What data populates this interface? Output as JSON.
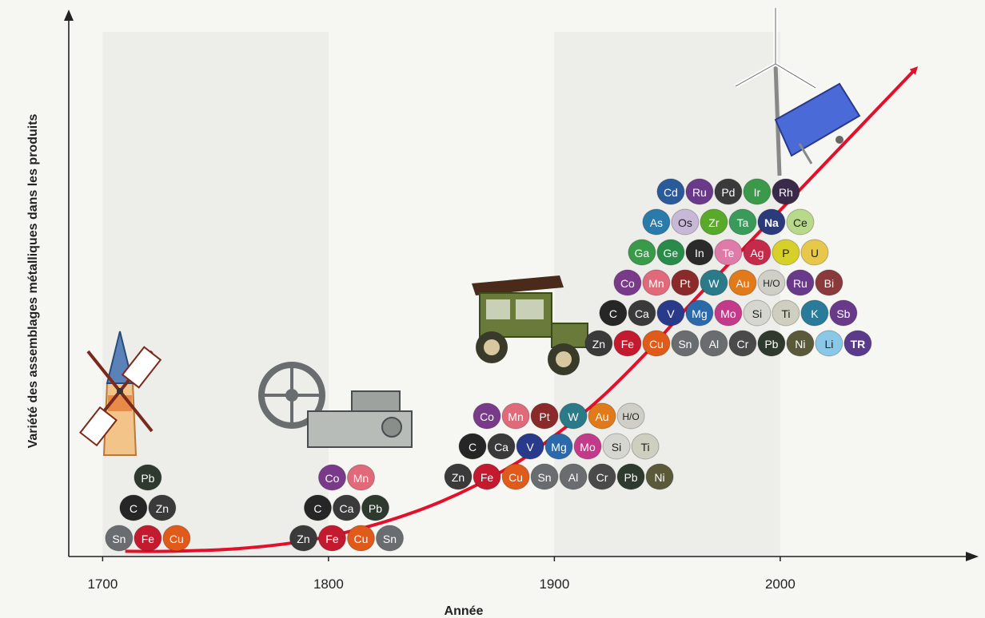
{
  "chart_data": {
    "type": "line",
    "title": "",
    "xlabel": "Année",
    "ylabel": "Variété des assemblages métalliques dans les produits",
    "x_ticks": [
      "1700",
      "1800",
      "1900",
      "2000"
    ],
    "xlim": [
      1685,
      2085
    ],
    "ylim": [
      0,
      10
    ],
    "grid": false,
    "trend_curve": {
      "x": [
        1710,
        1730,
        1760,
        1790,
        1820,
        1850,
        1880,
        1900,
        1920,
        1940,
        1960,
        1980,
        2000,
        2020,
        2040,
        2060
      ],
      "y": [
        0.1,
        0.1,
        0.15,
        0.3,
        0.6,
        1.05,
        1.7,
        2.3,
        3.0,
        3.85,
        4.8,
        5.7,
        6.6,
        7.5,
        8.4,
        9.3
      ],
      "color": "#e3102b"
    },
    "groups": [
      {
        "year": 1710,
        "icon": "windmill-icon",
        "rows": [
          [
            {
              "s": "Pb",
              "c": "#2e3a2e"
            }
          ],
          [
            {
              "s": "C",
              "c": "#262626"
            },
            {
              "s": "Zn",
              "c": "#3a3a3a"
            }
          ],
          [
            {
              "s": "Sn",
              "c": "#6a6d70"
            },
            {
              "s": "Fe",
              "c": "#c41a30"
            },
            {
              "s": "Cu",
              "c": "#e05a1a"
            }
          ]
        ]
      },
      {
        "year": 1800,
        "icon": "steam-engine-icon",
        "rows": [
          [
            {
              "s": "Co",
              "c": "#7a3a8a"
            },
            {
              "s": "Mn",
              "c": "#e06a7a"
            }
          ],
          [
            {
              "s": "C",
              "c": "#262626"
            },
            {
              "s": "Ca",
              "c": "#3a3a3a"
            },
            {
              "s": "Pb",
              "c": "#2e3a2e"
            }
          ],
          [
            {
              "s": "Zn",
              "c": "#3a3a3a"
            },
            {
              "s": "Fe",
              "c": "#c41a30"
            },
            {
              "s": "Cu",
              "c": "#e05a1a"
            },
            {
              "s": "Sn",
              "c": "#6a6d70"
            }
          ]
        ]
      },
      {
        "year": 1900,
        "icon": "car-icon",
        "rows": [
          [
            {
              "s": "Co",
              "c": "#7a3a8a"
            },
            {
              "s": "Mn",
              "c": "#e06a7a"
            },
            {
              "s": "Pt",
              "c": "#8a2a2a"
            },
            {
              "s": "W",
              "c": "#2a7a8a"
            },
            {
              "s": "Au",
              "c": "#e07a1a"
            },
            {
              "s": "H/O",
              "c": "#cfcfc8",
              "d": true
            }
          ],
          [
            {
              "s": "C",
              "c": "#262626"
            },
            {
              "s": "Ca",
              "c": "#3a3a3a"
            },
            {
              "s": "V",
              "c": "#2a3a8a"
            },
            {
              "s": "Mg",
              "c": "#2a6aaa"
            },
            {
              "s": "Mo",
              "c": "#c43a8a"
            },
            {
              "s": "Si",
              "c": "#d6d6d0",
              "d": true
            },
            {
              "s": "Ti",
              "c": "#cfcfc0",
              "d": true
            }
          ],
          [
            {
              "s": "Zn",
              "c": "#3a3a3a"
            },
            {
              "s": "Fe",
              "c": "#c41a30"
            },
            {
              "s": "Cu",
              "c": "#e05a1a"
            },
            {
              "s": "Sn",
              "c": "#6a6d70"
            },
            {
              "s": "Al",
              "c": "#6a6d70"
            },
            {
              "s": "Cr",
              "c": "#4a4a4a"
            },
            {
              "s": "Pb",
              "c": "#2e3a2e"
            },
            {
              "s": "Ni",
              "c": "#5a5a3a"
            }
          ]
        ]
      },
      {
        "year": 2000,
        "icon": "wind-solar-icon",
        "rows": [
          [
            {
              "s": "Cd",
              "c": "#2a5a9a"
            },
            {
              "s": "Ru",
              "c": "#6a3a8a"
            },
            {
              "s": "Pd",
              "c": "#3a3a3a"
            },
            {
              "s": "Ir",
              "c": "#3a9a4a"
            },
            {
              "s": "Rh",
              "c": "#3a2a4a"
            }
          ],
          [
            {
              "s": "As",
              "c": "#2a7aaa"
            },
            {
              "s": "Os",
              "c": "#c8b8d8",
              "d": true
            },
            {
              "s": "Zr",
              "c": "#5aaa2a"
            },
            {
              "s": "Ta",
              "c": "#3a9a5a"
            },
            {
              "s": "Na",
              "c": "#2a3a7a",
              "b": true
            },
            {
              "s": "Ce",
              "c": "#b8d88a",
              "d": true
            }
          ],
          [
            {
              "s": "Ga",
              "c": "#3a9a4a"
            },
            {
              "s": "Ge",
              "c": "#2a8a4a"
            },
            {
              "s": "In",
              "c": "#2a2a2a"
            },
            {
              "s": "Te",
              "c": "#e07aa8"
            },
            {
              "s": "Ag",
              "c": "#c42a4a"
            },
            {
              "s": "P",
              "c": "#d8d02a",
              "d": true
            },
            {
              "s": "U",
              "c": "#e8c84a",
              "d": true
            }
          ],
          [
            {
              "s": "Co",
              "c": "#7a3a8a"
            },
            {
              "s": "Mn",
              "c": "#e06a7a"
            },
            {
              "s": "Pt",
              "c": "#8a2a2a"
            },
            {
              "s": "W",
              "c": "#2a7a8a"
            },
            {
              "s": "Au",
              "c": "#e07a1a"
            },
            {
              "s": "H/O",
              "c": "#cfcfc8",
              "d": true
            },
            {
              "s": "Ru",
              "c": "#6a3a8a"
            },
            {
              "s": "Bi",
              "c": "#8a3a3a"
            }
          ],
          [
            {
              "s": "C",
              "c": "#262626"
            },
            {
              "s": "Ca",
              "c": "#3a3a3a"
            },
            {
              "s": "V",
              "c": "#2a3a8a"
            },
            {
              "s": "Mg",
              "c": "#2a6aaa"
            },
            {
              "s": "Mo",
              "c": "#c43a8a"
            },
            {
              "s": "Si",
              "c": "#d6d6d0",
              "d": true
            },
            {
              "s": "Ti",
              "c": "#cfcfc0",
              "d": true
            },
            {
              "s": "K",
              "c": "#2a7a9a"
            },
            {
              "s": "Sb",
              "c": "#6a3a8a"
            }
          ],
          [
            {
              "s": "Zn",
              "c": "#3a3a3a"
            },
            {
              "s": "Fe",
              "c": "#c41a30"
            },
            {
              "s": "Cu",
              "c": "#e05a1a"
            },
            {
              "s": "Sn",
              "c": "#6a6d70"
            },
            {
              "s": "Al",
              "c": "#6a6d70"
            },
            {
              "s": "Cr",
              "c": "#4a4a4a"
            },
            {
              "s": "Pb",
              "c": "#2e3a2e"
            },
            {
              "s": "Ni",
              "c": "#5a5a3a"
            },
            {
              "s": "Li",
              "c": "#8ac8e8",
              "d": true
            },
            {
              "s": "TR",
              "c": "#5a3a8a",
              "b": true
            }
          ]
        ]
      }
    ]
  }
}
